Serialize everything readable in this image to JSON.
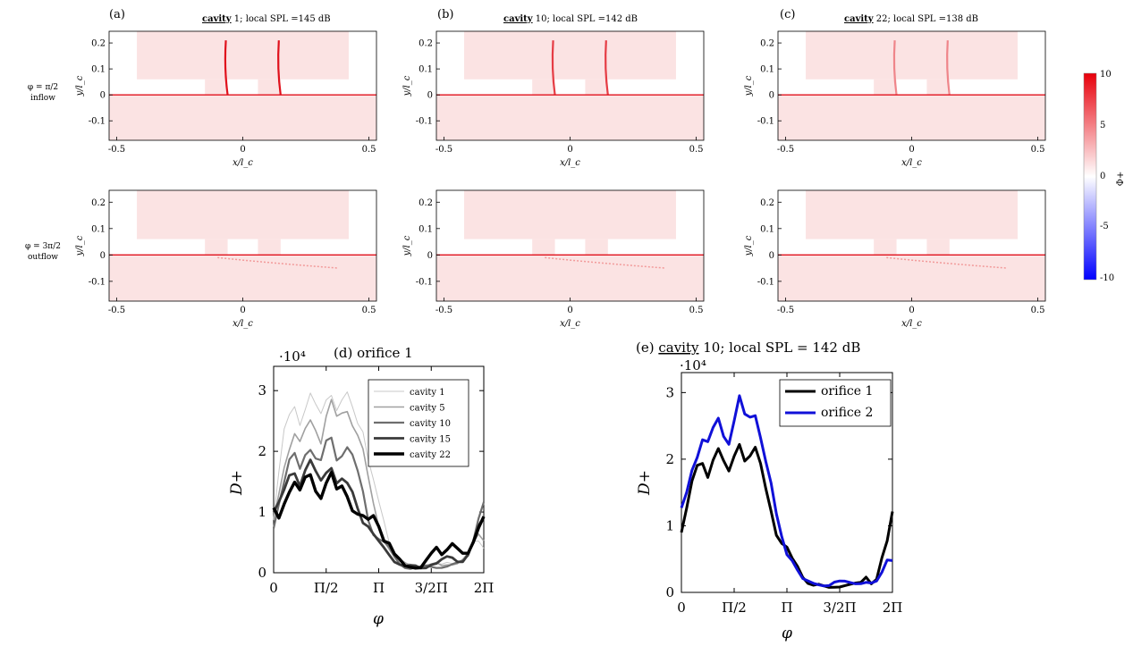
{
  "figure": {
    "row_labels": [
      {
        "phase": "φ = π/2",
        "flow": "inflow"
      },
      {
        "phase": "φ = 3π/2",
        "flow": "outflow"
      }
    ],
    "top_panels": [
      {
        "letter": "(a)",
        "cavity_word": "cavity",
        "rest": " 1; local SPL =145 dB"
      },
      {
        "letter": "(b)",
        "cavity_word": "cavity",
        "rest": " 10; local SPL =142 dB"
      },
      {
        "letter": "(c)",
        "cavity_word": "cavity",
        "rest": " 22; local SPL =138 dB"
      }
    ],
    "field_axes": {
      "xlabel": "x/l_c",
      "ylabel": "y/l_c",
      "xticks": [
        "-0.5",
        "0",
        "0.5"
      ],
      "yticks": [
        "0.2",
        "0.1",
        "0",
        "-0.1"
      ]
    },
    "colorbar": {
      "label": "Φ+",
      "ticks": [
        "10",
        "5",
        "0",
        "-5",
        "-10"
      ],
      "colors": {
        "positive": "#e8000b",
        "zero": "#ffffff",
        "negative": "#0000ff"
      }
    },
    "panel_d": {
      "title": "(d) orifice 1",
      "ylabel": "D+",
      "xlabel": "φ",
      "exponent": "·10⁴",
      "xticks": [
        "0",
        "Π/2",
        "Π",
        "3/2Π",
        "2Π"
      ],
      "yticks": [
        "0",
        "1",
        "2",
        "3"
      ],
      "legend": [
        "cavity 1",
        "cavity 5",
        "cavity 10",
        "cavity 15",
        "cavity 22"
      ]
    },
    "panel_e": {
      "title_letter": "(e) ",
      "title_cavity_word": "cavity",
      "title_rest": " 10; local SPL = 142 dB",
      "ylabel": "D+",
      "xlabel": "φ",
      "exponent": "·10⁴",
      "xticks": [
        "0",
        "Π/2",
        "Π",
        "3/2Π",
        "2Π"
      ],
      "yticks": [
        "0",
        "1",
        "2",
        "3"
      ],
      "legend": [
        "orifice 1",
        "orifice 2"
      ]
    }
  },
  "chart_data": [
    {
      "type": "line",
      "title": "(d) orifice 1",
      "xlabel": "φ",
      "ylabel": "D+ ·10⁴",
      "x_unit": "phase, 0 to 2Π",
      "xlim": [
        0,
        6.283
      ],
      "ylim": [
        0,
        3.4
      ],
      "x": [
        0,
        0.1571,
        0.3142,
        0.4712,
        0.6283,
        0.7854,
        0.9425,
        1.0996,
        1.2566,
        1.4137,
        1.5708,
        1.7279,
        1.885,
        2.042,
        2.1991,
        2.3562,
        2.5133,
        2.6704,
        2.8274,
        2.9845,
        3.1416,
        3.2987,
        3.4558,
        3.6128,
        3.7699,
        3.927,
        4.0841,
        4.2412,
        4.3982,
        4.5553,
        4.7124,
        4.8695,
        5.0265,
        5.1836,
        5.3407,
        5.4978,
        5.6549,
        5.812,
        5.969,
        6.1261,
        6.2832
      ],
      "series": [
        {
          "name": "cavity 1",
          "values": [
            0.9,
            1.6,
            2.3,
            2.6,
            2.8,
            2.5,
            2.7,
            2.9,
            2.7,
            2.6,
            2.9,
            3.0,
            2.7,
            2.8,
            2.9,
            2.7,
            2.5,
            2.4,
            1.9,
            1.5,
            1.1,
            0.8,
            0.5,
            0.3,
            0.2,
            0.15,
            0.12,
            0.1,
            0.1,
            0.12,
            0.15,
            0.15,
            0.12,
            0.15,
            0.15,
            0.2,
            0.2,
            0.3,
            0.5,
            0.5,
            0.4
          ]
        },
        {
          "name": "cavity 5",
          "values": [
            0.8,
            1.3,
            1.8,
            2.1,
            2.3,
            2.1,
            2.3,
            2.5,
            2.4,
            2.2,
            2.6,
            2.8,
            2.5,
            2.6,
            2.7,
            2.5,
            2.3,
            2.0,
            1.5,
            1.1,
            0.8,
            0.6,
            0.4,
            0.25,
            0.2,
            0.15,
            0.12,
            0.1,
            0.1,
            0.12,
            0.12,
            0.15,
            0.12,
            0.15,
            0.15,
            0.15,
            0.2,
            0.3,
            0.5,
            0.7,
            0.6
          ]
        },
        {
          "name": "cavity 10",
          "values": [
            0.8,
            1.2,
            1.5,
            1.8,
            1.9,
            1.7,
            2.0,
            2.1,
            1.9,
            1.8,
            2.1,
            2.2,
            1.9,
            2.0,
            2.1,
            1.9,
            1.6,
            1.3,
            0.9,
            0.7,
            0.6,
            0.5,
            0.4,
            0.25,
            0.15,
            0.1,
            0.08,
            0.08,
            0.08,
            0.1,
            0.1,
            0.1,
            0.1,
            0.1,
            0.12,
            0.15,
            0.2,
            0.3,
            0.6,
            0.9,
            1.1
          ]
        },
        {
          "name": "cavity 15",
          "values": [
            1.0,
            1.1,
            1.3,
            1.6,
            1.7,
            1.5,
            1.7,
            1.8,
            1.6,
            1.5,
            1.7,
            1.8,
            1.5,
            1.5,
            1.4,
            1.3,
            1.1,
            0.9,
            0.8,
            0.6,
            0.5,
            0.4,
            0.3,
            0.2,
            0.15,
            0.1,
            0.1,
            0.1,
            0.08,
            0.1,
            0.15,
            0.15,
            0.2,
            0.25,
            0.25,
            0.2,
            0.2,
            0.3,
            0.5,
            0.7,
            0.9
          ]
        },
        {
          "name": "cavity 22",
          "values": [
            1.0,
            0.9,
            1.2,
            1.4,
            1.5,
            1.3,
            1.5,
            1.6,
            1.4,
            1.3,
            1.5,
            1.6,
            1.3,
            1.4,
            1.3,
            1.1,
            1.0,
            0.9,
            0.8,
            0.9,
            0.8,
            0.6,
            0.5,
            0.3,
            0.2,
            0.1,
            0.1,
            0.1,
            0.1,
            0.2,
            0.3,
            0.4,
            0.3,
            0.4,
            0.5,
            0.4,
            0.3,
            0.3,
            0.5,
            0.8,
            1.0
          ]
        }
      ]
    },
    {
      "type": "line",
      "title": "(e) cavity 10; local SPL = 142 dB",
      "xlabel": "φ",
      "ylabel": "D+ ·10⁴",
      "x_unit": "phase, 0 to 2Π",
      "xlim": [
        0,
        6.283
      ],
      "ylim": [
        0,
        3.3
      ],
      "x": [
        0,
        0.1571,
        0.3142,
        0.4712,
        0.6283,
        0.7854,
        0.9425,
        1.0996,
        1.2566,
        1.4137,
        1.5708,
        1.7279,
        1.885,
        2.042,
        2.1991,
        2.3562,
        2.5133,
        2.6704,
        2.8274,
        2.9845,
        3.1416,
        3.2987,
        3.4558,
        3.6128,
        3.7699,
        3.927,
        4.0841,
        4.2412,
        4.3982,
        4.5553,
        4.7124,
        4.8695,
        5.0265,
        5.1836,
        5.3407,
        5.4978,
        5.6549,
        5.812,
        5.969,
        6.1261,
        6.2832
      ],
      "series": [
        {
          "name": "orifice 1",
          "values": [
            0.9,
            1.2,
            1.6,
            1.9,
            2.0,
            1.8,
            2.0,
            2.1,
            1.9,
            1.8,
            2.1,
            2.3,
            2.0,
            2.0,
            2.1,
            1.9,
            1.6,
            1.3,
            0.9,
            0.7,
            0.6,
            0.5,
            0.4,
            0.25,
            0.15,
            0.1,
            0.1,
            0.08,
            0.08,
            0.1,
            0.1,
            0.1,
            0.1,
            0.12,
            0.15,
            0.25,
            0.15,
            0.2,
            0.5,
            0.7,
            1.2
          ]
        },
        {
          "name": "orifice 2",
          "values": [
            1.2,
            1.5,
            1.9,
            2.1,
            2.3,
            2.2,
            2.4,
            2.6,
            2.4,
            2.3,
            2.6,
            2.9,
            2.6,
            2.6,
            2.7,
            2.4,
            2.0,
            1.6,
            1.1,
            0.8,
            0.6,
            0.5,
            0.35,
            0.2,
            0.15,
            0.12,
            0.12,
            0.12,
            0.12,
            0.15,
            0.15,
            0.15,
            0.15,
            0.15,
            0.15,
            0.15,
            0.12,
            0.15,
            0.3,
            0.55,
            0.5
          ]
        }
      ]
    }
  ]
}
